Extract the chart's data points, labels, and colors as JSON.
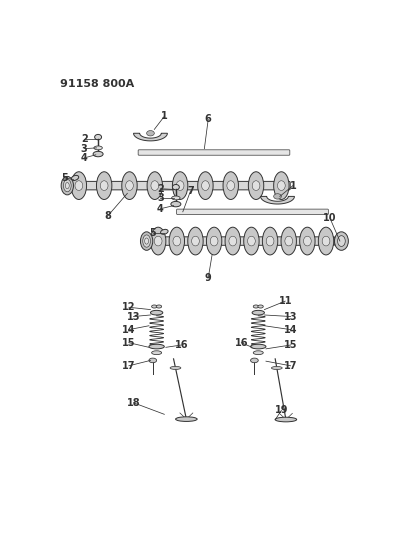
{
  "title_code": "91158 800A",
  "bg_color": "#ffffff",
  "lc": "#333333",
  "fc_light": "#e8e8e8",
  "fc_med": "#d0d0d0",
  "fc_dark": "#b0b0b0"
}
